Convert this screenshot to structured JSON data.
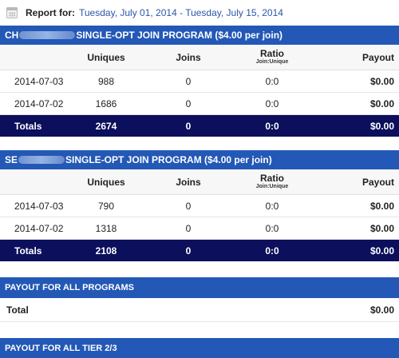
{
  "report": {
    "label": "Report for:",
    "dates": "Tuesday, July 01, 2014 - Tuesday, July 15, 2014",
    "icon": "calendar-icon"
  },
  "columns": {
    "uniques": "Uniques",
    "joins": "Joins",
    "ratio": "Ratio",
    "ratio_sub": "Join:Unique",
    "payout": "Payout"
  },
  "programs": [
    {
      "prefix": "CH",
      "title": "SINGLE-OPT JOIN PROGRAM ($4.00 per join)",
      "rows": [
        {
          "date": "2014-07-03",
          "uniques": "988",
          "joins": "0",
          "ratio": "0:0",
          "payout": "$0.00"
        },
        {
          "date": "2014-07-02",
          "uniques": "1686",
          "joins": "0",
          "ratio": "0:0",
          "payout": "$0.00"
        }
      ],
      "totals": {
        "label": "Totals",
        "uniques": "2674",
        "joins": "0",
        "ratio": "0:0",
        "payout": "$0.00"
      }
    },
    {
      "prefix": "SE",
      "title": "SINGLE-OPT JOIN PROGRAM ($4.00 per join)",
      "rows": [
        {
          "date": "2014-07-03",
          "uniques": "790",
          "joins": "0",
          "ratio": "0:0",
          "payout": "$0.00"
        },
        {
          "date": "2014-07-02",
          "uniques": "1318",
          "joins": "0",
          "ratio": "0:0",
          "payout": "$0.00"
        }
      ],
      "totals": {
        "label": "Totals",
        "uniques": "2108",
        "joins": "0",
        "ratio": "0:0",
        "payout": "$0.00"
      }
    }
  ],
  "payout_all": {
    "title": "PAYOUT FOR ALL PROGRAMS",
    "total_label": "Total",
    "total_value": "$0.00"
  },
  "tier": {
    "title": "PAYOUT FOR ALL TIER 2/3"
  }
}
